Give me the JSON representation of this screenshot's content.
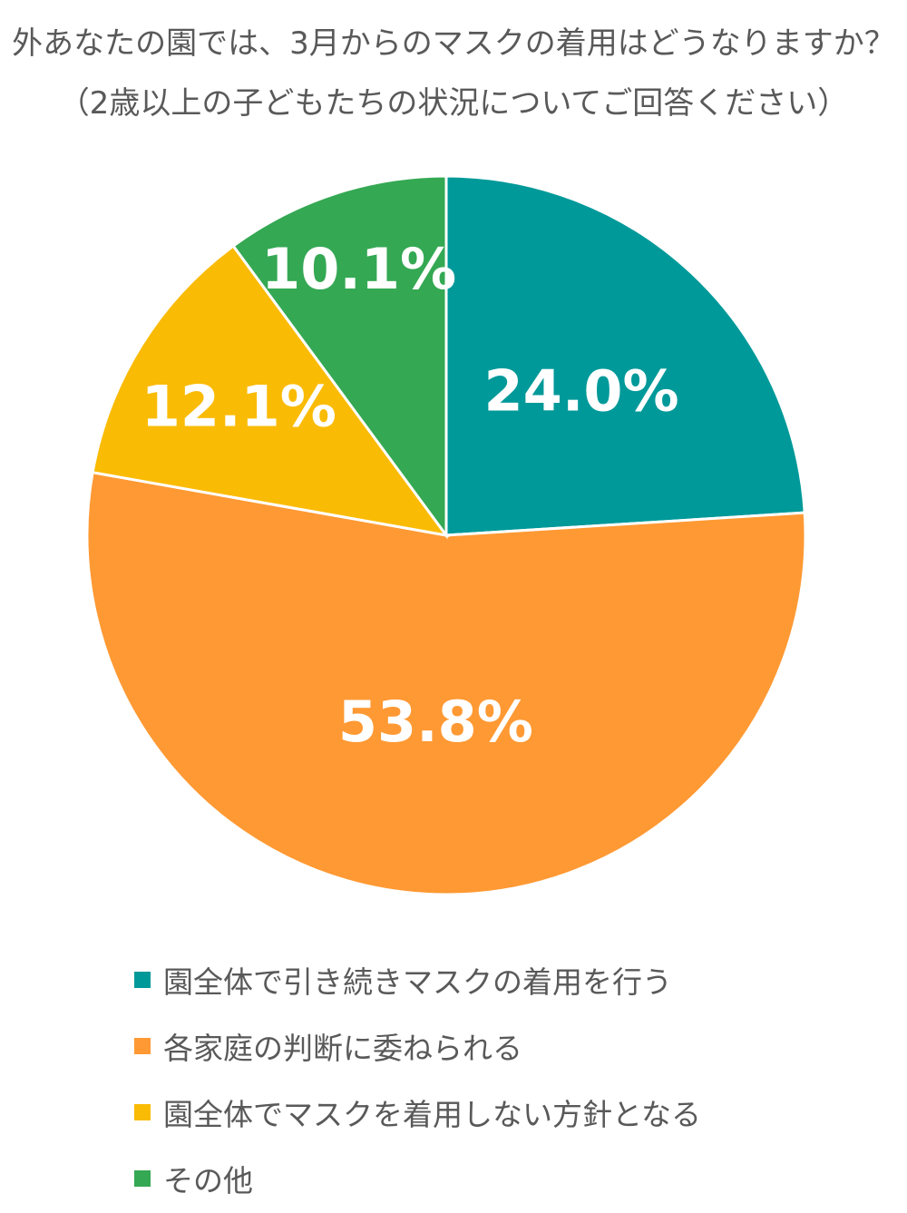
{
  "chart_data": {
    "type": "pie",
    "title": "外あなたの園では、3月からのマスクの着用はどうなりますか？",
    "subtitle": "（2歳以上の子どもたちの状況についてご回答ください）",
    "slices": [
      {
        "name": "園全体で引き続きマスクの着用を行う",
        "value": 24.0,
        "label": "24.0%",
        "color": "#009999"
      },
      {
        "name": "各家庭の判断に委ねられる",
        "value": 53.8,
        "label": "53.8%",
        "color": "#FF9933"
      },
      {
        "name": "園全体でマスクを着用しない方針となる",
        "value": 12.1,
        "label": "12.1%",
        "color": "#FABB05"
      },
      {
        "name": "その他",
        "value": 10.1,
        "label": "10.1%",
        "color": "#34A853"
      }
    ],
    "start_angle": "12 o'clock",
    "direction": "clockwise",
    "legend_position": "bottom"
  }
}
